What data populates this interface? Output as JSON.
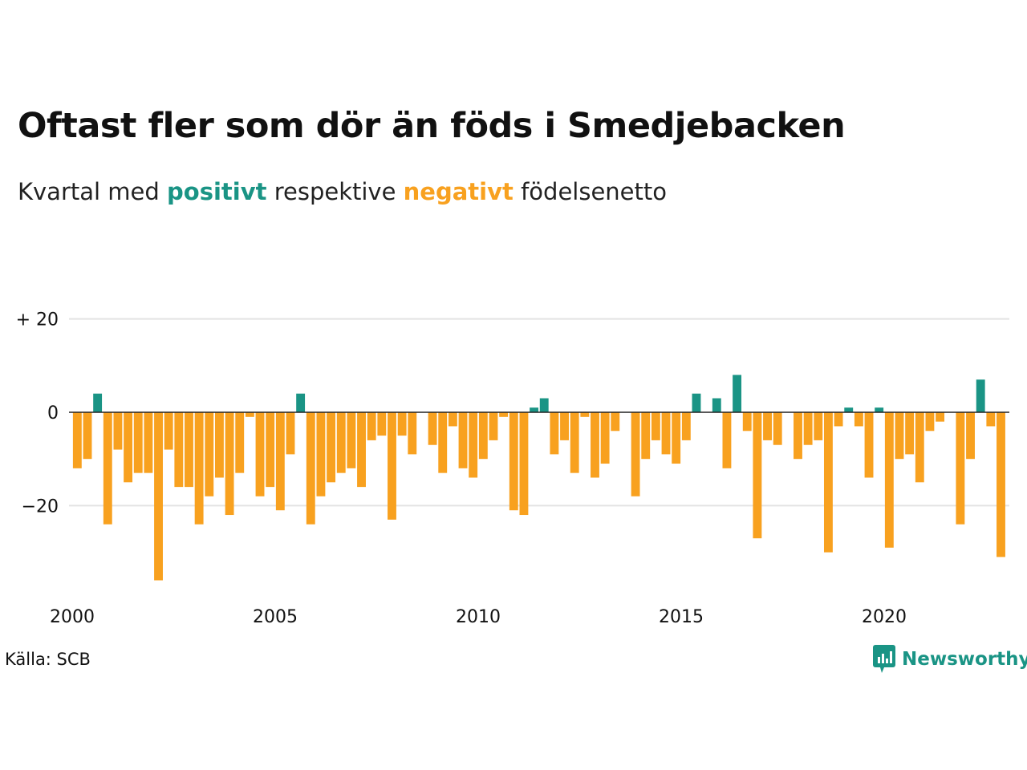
{
  "title": "Oftast fler som dör än föds i Smedjebacken",
  "subtitle": {
    "prefix": "Kvartal med ",
    "positive_word": "positivt",
    "middle": " respektive ",
    "negative_word": "negativt",
    "suffix": " födelsenetto"
  },
  "colors": {
    "positive": "#1a9485",
    "negative": "#f8a11f",
    "grid": "#e3e3e3",
    "zero_line": "#222222"
  },
  "source": "Källa: SCB",
  "brand": {
    "name": "Newsworthy",
    "icon": "newsworthy-logo-icon"
  },
  "chart_data": {
    "type": "bar",
    "title": "Oftast fler som dör än föds i Smedjebacken",
    "subtitle": "Kvartal med positivt respektive negativt födelsenetto",
    "y_tick_labels": [
      "+ 20",
      "0",
      "−20"
    ],
    "y_ticks": [
      20,
      0,
      -20
    ],
    "x_tick_labels": [
      "2000",
      "2005",
      "2010",
      "2015",
      "2020"
    ],
    "x_ticks": [
      2000,
      2005,
      2010,
      2015,
      2020
    ],
    "ylim": [
      -36,
      20
    ],
    "grid": true,
    "x_start": 2000,
    "periods_per_year": 4,
    "values": [
      -12,
      -10,
      4,
      -24,
      -8,
      -15,
      -13,
      -13,
      -36,
      -8,
      -16,
      -16,
      -24,
      -18,
      -14,
      -22,
      -13,
      -1,
      -18,
      -16,
      -21,
      -9,
      4,
      -24,
      -18,
      -15,
      -13,
      -12,
      -16,
      -6,
      -5,
      -23,
      -5,
      -9,
      0,
      -7,
      -13,
      -3,
      -12,
      -14,
      -10,
      -6,
      -1,
      -21,
      -22,
      1,
      3,
      -9,
      -6,
      -13,
      -1,
      -14,
      -11,
      -4,
      0,
      -18,
      -10,
      -6,
      -9,
      -11,
      -6,
      4,
      0,
      3,
      -12,
      8,
      -4,
      -27,
      -6,
      -7,
      0,
      -10,
      -7,
      -6,
      -30,
      -3,
      1,
      -3,
      -14,
      1,
      -29,
      -10,
      -9,
      -15,
      -4,
      -2,
      0,
      -24,
      -10,
      7,
      -3,
      -31
    ]
  }
}
